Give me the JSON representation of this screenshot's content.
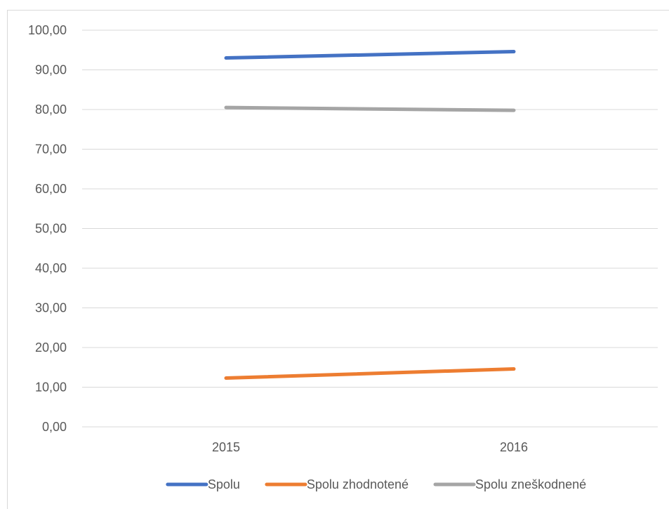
{
  "chart_data": {
    "type": "line",
    "categories": [
      "2015",
      "2016"
    ],
    "series": [
      {
        "name": "Spolu",
        "values": [
          93.0,
          94.6
        ],
        "color": "#4472c4"
      },
      {
        "name": "Spolu zhodnotené",
        "values": [
          12.3,
          14.6
        ],
        "color": "#ed7d31"
      },
      {
        "name": "Spolu zneškodnené",
        "values": [
          80.5,
          79.8
        ],
        "color": "#a5a5a5"
      }
    ],
    "y_ticks": [
      "0,00",
      "10,00",
      "20,00",
      "30,00",
      "40,00",
      "50,00",
      "60,00",
      "70,00",
      "80,00",
      "90,00",
      "100,00"
    ],
    "ylim": [
      0,
      100
    ],
    "grid": true,
    "legend_position": "bottom"
  }
}
